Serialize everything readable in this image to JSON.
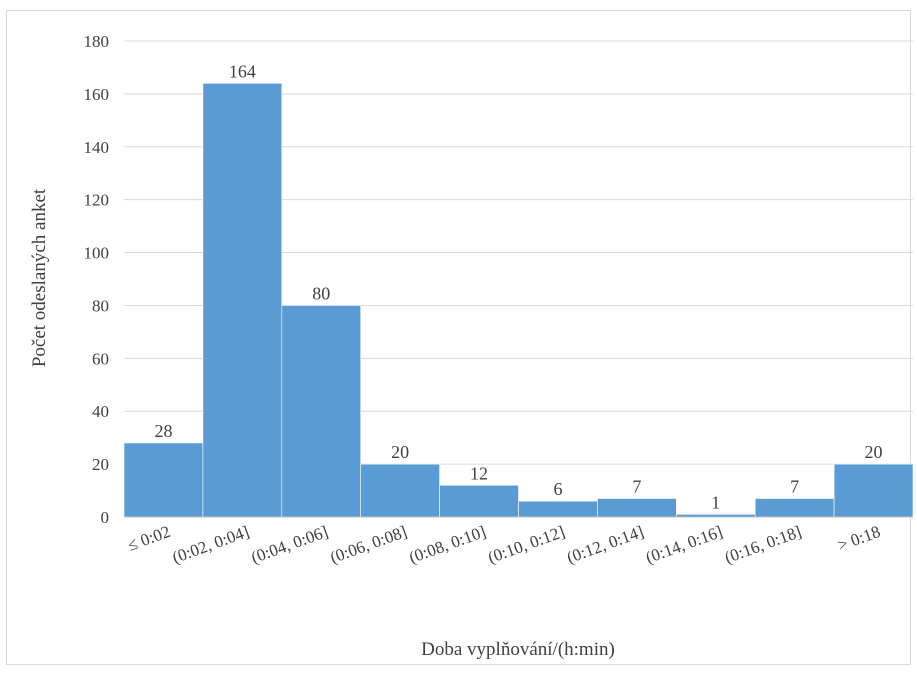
{
  "chart_data": {
    "type": "bar",
    "categories": [
      "≤ 0:02",
      "(0:02, 0:04]",
      "(0:04, 0:06]",
      "(0:06, 0:08]",
      "(0:08, 0:10]",
      "(0:10, 0:12]",
      "(0:12, 0:14]",
      "(0:14, 0:16]",
      "(0:16, 0:18]",
      "> 0:18"
    ],
    "values": [
      28,
      164,
      80,
      20,
      12,
      6,
      7,
      1,
      7,
      20
    ],
    "xlabel": "Doba vyplňování/(h:min)",
    "ylabel": "Počet odeslaných anket",
    "ylim": [
      0,
      180
    ],
    "yticks": [
      0,
      20,
      40,
      60,
      80,
      100,
      120,
      140,
      160,
      180
    ],
    "grid": true,
    "bar_color": "#5b9bd5",
    "grid_color": "#d9d9d9",
    "legend": "none"
  }
}
